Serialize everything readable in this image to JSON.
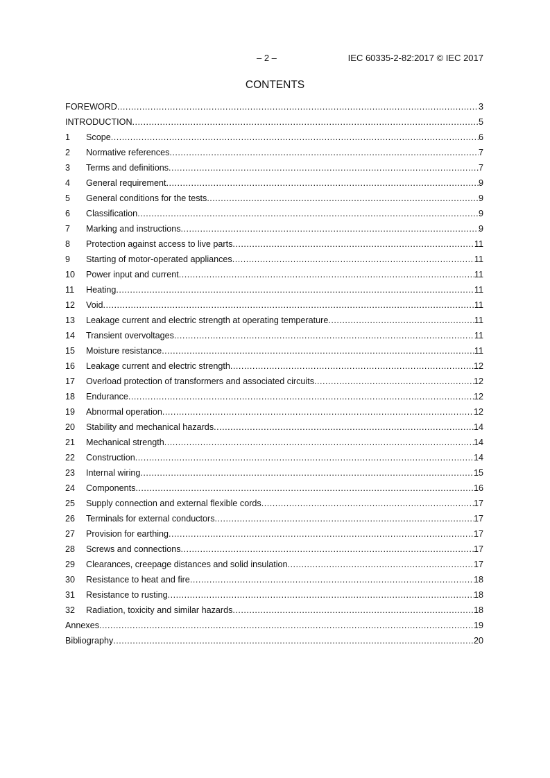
{
  "header": {
    "page_number": "– 2 –",
    "reference": "IEC 60335-2-82:2017 © IEC 2017"
  },
  "title": "CONTENTS",
  "toc": [
    {
      "num": "",
      "title": "FOREWORD",
      "page": "3"
    },
    {
      "num": "",
      "title": "INTRODUCTION",
      "page": "5"
    },
    {
      "num": "1",
      "title": "Scope",
      "page": "6"
    },
    {
      "num": "2",
      "title": "Normative references",
      "page": "7"
    },
    {
      "num": "3",
      "title": "Terms and definitions",
      "page": "7"
    },
    {
      "num": "4",
      "title": "General requirement",
      "page": "9"
    },
    {
      "num": "5",
      "title": "General conditions for the tests",
      "page": "9"
    },
    {
      "num": "6",
      "title": "Classification",
      "page": "9"
    },
    {
      "num": "7",
      "title": "Marking and instructions",
      "page": "9"
    },
    {
      "num": "8",
      "title": "Protection against access to live parts",
      "page": "11"
    },
    {
      "num": "9",
      "title": "Starting of motor-operated appliances",
      "page": "11"
    },
    {
      "num": "10",
      "title": "Power input and current",
      "page": "11"
    },
    {
      "num": "11",
      "title": "Heating",
      "page": "11"
    },
    {
      "num": "12",
      "title": "Void",
      "page": "11"
    },
    {
      "num": "13",
      "title": "Leakage current and electric strength at operating temperature",
      "page": "11"
    },
    {
      "num": "14",
      "title": "Transient overvoltages",
      "page": "11"
    },
    {
      "num": "15",
      "title": "Moisture resistance",
      "page": "11"
    },
    {
      "num": "16",
      "title": "Leakage current and electric strength",
      "page": "12"
    },
    {
      "num": "17",
      "title": "Overload protection of transformers and associated circuits",
      "page": "12"
    },
    {
      "num": "18",
      "title": "Endurance",
      "page": "12"
    },
    {
      "num": "19",
      "title": "Abnormal operation",
      "page": "12"
    },
    {
      "num": "20",
      "title": "Stability and mechanical hazards",
      "page": "14"
    },
    {
      "num": "21",
      "title": "Mechanical strength",
      "page": "14"
    },
    {
      "num": "22",
      "title": "Construction",
      "page": "14"
    },
    {
      "num": "23",
      "title": "Internal wiring",
      "page": "15"
    },
    {
      "num": "24",
      "title": "Components",
      "page": "16"
    },
    {
      "num": "25",
      "title": "Supply connection and external flexible cords",
      "page": "17"
    },
    {
      "num": "26",
      "title": "Terminals for external conductors",
      "page": "17"
    },
    {
      "num": "27",
      "title": "Provision for earthing",
      "page": "17"
    },
    {
      "num": "28",
      "title": "Screws and connections",
      "page": "17"
    },
    {
      "num": "29",
      "title": "Clearances, creepage distances and solid insulation",
      "page": "17"
    },
    {
      "num": "30",
      "title": "Resistance to heat and fire",
      "page": "18"
    },
    {
      "num": "31",
      "title": "Resistance to rusting",
      "page": "18"
    },
    {
      "num": "32",
      "title": "Radiation, toxicity and similar hazards",
      "page": "18"
    },
    {
      "num": "",
      "title": "Annexes",
      "page": "19"
    },
    {
      "num": "",
      "title": "Bibliography",
      "page": "20"
    }
  ]
}
